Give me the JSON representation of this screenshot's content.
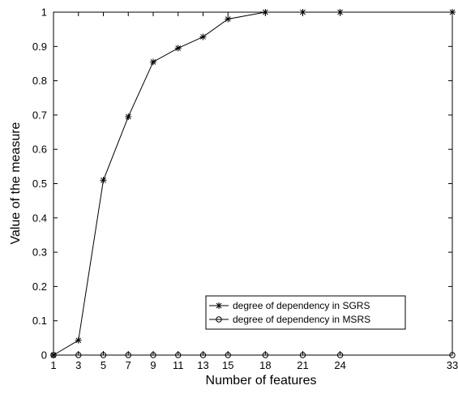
{
  "chart_data": {
    "type": "line",
    "title": "",
    "xlabel": "Number of features",
    "ylabel": "Value of the measure",
    "xlim": [
      1,
      33
    ],
    "ylim": [
      0,
      1
    ],
    "xticks": [
      1,
      3,
      5,
      7,
      9,
      11,
      13,
      15,
      18,
      21,
      24,
      33
    ],
    "yticks": [
      0,
      0.1,
      0.2,
      0.3,
      0.4,
      0.5,
      0.6,
      0.7,
      0.8,
      0.9,
      1
    ],
    "grid": false,
    "legend_position": "lower-right",
    "series": [
      {
        "name": "degree of dependency in SGRS",
        "marker": "asterisk",
        "x": [
          1,
          3,
          5,
          7,
          9,
          11,
          13,
          15,
          18,
          21,
          24,
          33
        ],
        "y": [
          0,
          0.043,
          0.51,
          0.695,
          0.855,
          0.895,
          0.928,
          0.98,
          1,
          1,
          1,
          1
        ]
      },
      {
        "name": "degree of dependency in MSRS",
        "marker": "circle",
        "x": [
          1,
          3,
          5,
          7,
          9,
          11,
          13,
          15,
          18,
          21,
          24,
          33
        ],
        "y": [
          0,
          0,
          0,
          0,
          0,
          0,
          0,
          0,
          0,
          0,
          0,
          0
        ]
      }
    ]
  }
}
